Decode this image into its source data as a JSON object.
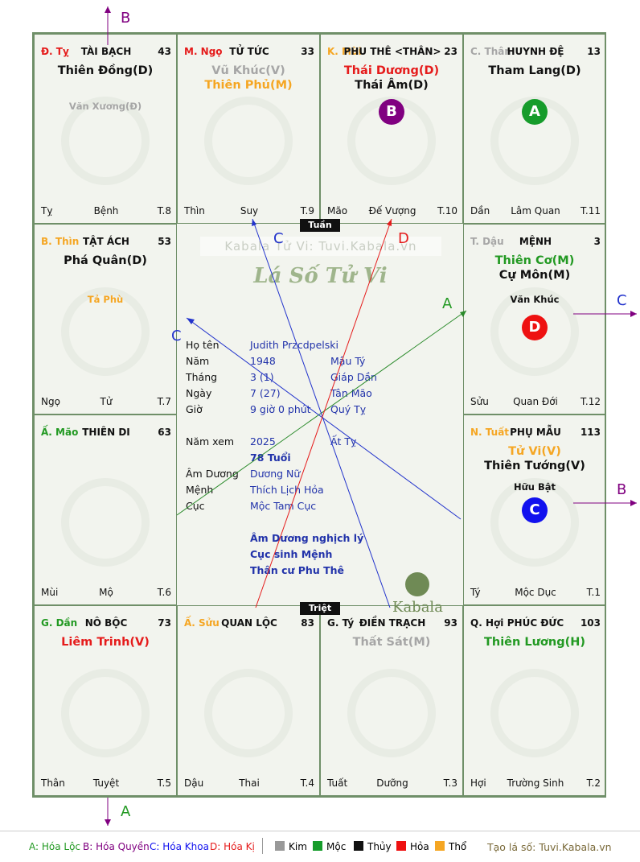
{
  "cells": [
    {
      "branch": "Đ. Tỵ",
      "branch_color": "#e51b1b",
      "house": "TÀI BẠCH",
      "num": "43",
      "stars": [
        {
          "t": "Thiên Đồng(D)",
          "c": "#111111"
        }
      ],
      "minor": [
        {
          "t": "Văn Xương(Đ)",
          "c": "#a6a6a6"
        }
      ],
      "foot": [
        "Tỵ",
        "Bệnh",
        "T.8"
      ]
    },
    {
      "branch": "M. Ngọ",
      "branch_color": "#e51b1b",
      "house": "TỬ TỨC",
      "num": "33",
      "stars": [
        {
          "t": "Vũ Khúc(V)",
          "c": "#a6a6a6"
        },
        {
          "t": "Thiên Phủ(M)",
          "c": "#f5a623"
        }
      ],
      "minor": [],
      "foot": [
        "Thìn",
        "Suy",
        "T.9"
      ]
    },
    {
      "branch": "K. Mùi",
      "branch_color": "#f5a623",
      "house": "PHU THÊ <THÂN>",
      "num": "23",
      "stars": [
        {
          "t": "Thái Dương(D)",
          "c": "#e51b1b"
        },
        {
          "t": "Thái Âm(D)",
          "c": "#111111"
        }
      ],
      "minor": [],
      "circle": {
        "t": "B",
        "c": "#800080"
      },
      "foot": [
        "Mão",
        "Đế Vượng",
        "T.10"
      ]
    },
    {
      "branch": "C. Thân",
      "branch_color": "#a6a6a6",
      "house": "HUYNH ĐỆ",
      "num": "13",
      "stars": [
        {
          "t": "Tham Lang(D)",
          "c": "#111111"
        }
      ],
      "minor": [],
      "circle": {
        "t": "A",
        "c": "#169c2b"
      },
      "foot": [
        "Dần",
        "Lâm Quan",
        "T.11"
      ]
    },
    {
      "branch": "B. Thìn",
      "branch_color": "#f5a623",
      "house": "TẬT ÁCH",
      "num": "53",
      "stars": [
        {
          "t": "Phá Quân(D)",
          "c": "#111111"
        }
      ],
      "minor": [
        {
          "t": "Tả Phù",
          "c": "#f5a623"
        }
      ],
      "foot": [
        "Ngọ",
        "Tử",
        "T.7"
      ]
    },
    {
      "branch": "T. Dậu",
      "branch_color": "#a6a6a6",
      "house": "MỆNH",
      "num": "3",
      "stars": [
        {
          "t": "Thiên Cơ(M)",
          "c": "#229922"
        },
        {
          "t": "Cự Môn(M)",
          "c": "#111111"
        }
      ],
      "minor": [
        {
          "t": "Văn Khúc",
          "c": "#111111"
        }
      ],
      "circle": {
        "t": "D",
        "c": "#ee1111"
      },
      "foot": [
        "Sửu",
        "Quan Đới",
        "T.12"
      ]
    },
    {
      "branch": "Ấ. Mão",
      "branch_color": "#229922",
      "house": "THIÊN DI",
      "num": "63",
      "stars": [],
      "minor": [],
      "foot": [
        "Mùi",
        "Mộ",
        "T.6"
      ]
    },
    {
      "branch": "N. Tuất",
      "branch_color": "#f5a623",
      "house": "PHỤ MẪU",
      "num": "113",
      "stars": [
        {
          "t": "Tử Vi(V)",
          "c": "#f5a623"
        },
        {
          "t": "Thiên Tướng(V)",
          "c": "#111111"
        }
      ],
      "minor": [
        {
          "t": "Hữu Bật",
          "c": "#111111"
        }
      ],
      "circle": {
        "t": "C",
        "c": "#1111ee"
      },
      "foot": [
        "Tý",
        "Mộc Dục",
        "T.1"
      ]
    },
    {
      "branch": "G. Dần",
      "branch_color": "#229922",
      "house": "NÔ BỘC",
      "num": "73",
      "stars": [
        {
          "t": "Liêm Trinh(V)",
          "c": "#e51b1b"
        }
      ],
      "minor": [],
      "foot": [
        "Thân",
        "Tuyệt",
        "T.5"
      ]
    },
    {
      "branch": "Ấ. Sửu",
      "branch_color": "#f5a623",
      "house": "QUAN LỘC",
      "num": "83",
      "stars": [],
      "minor": [],
      "foot": [
        "Dậu",
        "Thai",
        "T.4"
      ]
    },
    {
      "branch": "G. Tý",
      "branch_color": "#111111",
      "house": "ĐIỀN TRẠCH",
      "num": "93",
      "stars": [
        {
          "t": "Thất Sát(M)",
          "c": "#a6a6a6"
        }
      ],
      "minor": [],
      "foot": [
        "Tuất",
        "Dưỡng",
        "T.3"
      ]
    },
    {
      "branch": "Q. Hợi",
      "branch_color": "#111111",
      "house": "PHÚC ĐỨC",
      "num": "103",
      "stars": [
        {
          "t": "Thiên Lương(H)",
          "c": "#229922"
        }
      ],
      "minor": [],
      "foot": [
        "Hợi",
        "Trường Sinh",
        "T.2"
      ]
    }
  ],
  "center": {
    "tuan": "Tuần",
    "triet": "Triệt",
    "watermark": "Kabala Tử Vi: Tuvi.Kabala.vn",
    "title": "Lá Số Tử Vi",
    "logo_text": "Kabala",
    "rows": [
      {
        "label": "Họ tên",
        "v1": "Judith Przcdpelski",
        "v2": ""
      },
      {
        "label": "Năm",
        "v1": "1948",
        "v2": "Mậu Tý"
      },
      {
        "label": "Tháng",
        "v1": "3  (1)",
        "v2": "Giáp Dần"
      },
      {
        "label": "Ngày",
        "v1": "7  (27)",
        "v2": "Tân Mão"
      },
      {
        "label": "Giờ",
        "v1": "9 giờ 0 phút",
        "v2": "Quý Tỵ"
      },
      {
        "label": "Năm xem",
        "v1": "2025",
        "v2": "Ất Tỵ"
      },
      {
        "label": "",
        "v1": "78 Tuổi",
        "v2": ""
      },
      {
        "label": "Âm Dương",
        "v1": "Dương Nữ",
        "v2": ""
      },
      {
        "label": "Mệnh",
        "v1": "Thích Lịch Hỏa",
        "v2": ""
      },
      {
        "label": "Cục",
        "v1": "Mộc Tam Cục",
        "v2": ""
      }
    ],
    "notes": [
      "Âm Dương nghịch lý",
      "Cục sinh Mệnh",
      "Thân cư Phu Thê"
    ]
  },
  "arrows": {
    "top": "B",
    "bottom": "A",
    "right_c": "C",
    "right_b": "B",
    "line_a": "A",
    "line_b": "C",
    "line_c": "C",
    "line_d": "D"
  },
  "legend": {
    "items": [
      {
        "t": "A: Hóa Lộc",
        "c": "#229922"
      },
      {
        "t": "B: Hóa Quyền",
        "c": "#800080"
      },
      {
        "t": "C: Hóa Khoa",
        "c": "#1111ee"
      },
      {
        "t": "D: Hóa Kị",
        "c": "#e51b1b"
      }
    ],
    "elements": [
      {
        "t": "Kim",
        "c": "#999999"
      },
      {
        "t": "Mộc",
        "c": "#169c2b"
      },
      {
        "t": "Thủy",
        "c": "#111111"
      },
      {
        "t": "Hỏa",
        "c": "#ee1111"
      },
      {
        "t": "Thổ",
        "c": "#f5a623"
      }
    ],
    "site": "Tạo lá số: Tuvi.Kabala.vn"
  }
}
